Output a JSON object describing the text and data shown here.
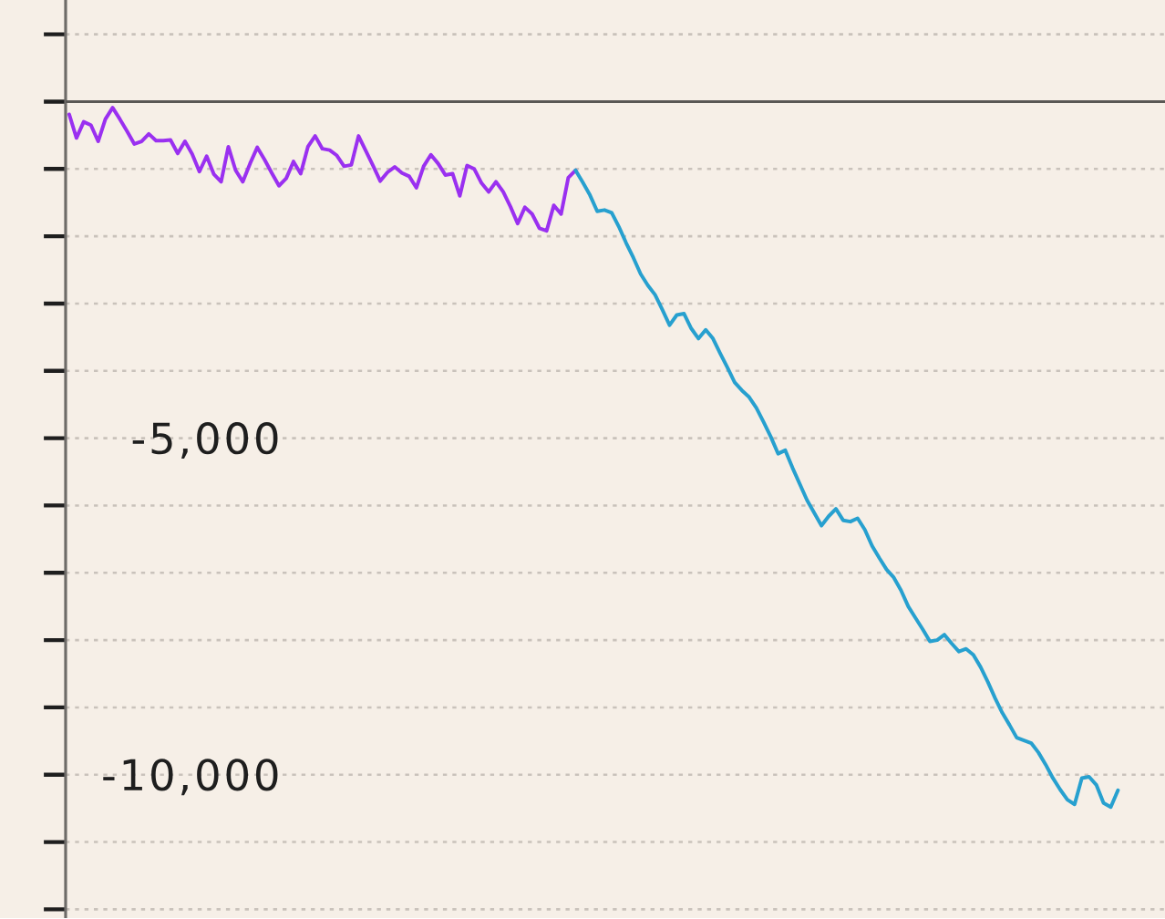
{
  "chart_data": {
    "type": "line",
    "categories": [
      null,
      null,
      null,
      null,
      null,
      null,
      null,
      null,
      null,
      null,
      null,
      null,
      null,
      null,
      null,
      null,
      null,
      null,
      null,
      null,
      null,
      null,
      null,
      null,
      null,
      null,
      null,
      null,
      null,
      null,
      null,
      null,
      null,
      null,
      null,
      null,
      null,
      null,
      null,
      null,
      null,
      null,
      null,
      null,
      null,
      null,
      null,
      null,
      null,
      null,
      null,
      null,
      null,
      null,
      null,
      null,
      null,
      null,
      null,
      null,
      null,
      null,
      null,
      null,
      null,
      null,
      null,
      null,
      null,
      null,
      null,
      null,
      null,
      null,
      null,
      null,
      null,
      null,
      null,
      null,
      null,
      null,
      null,
      null,
      null,
      null,
      null,
      null,
      null,
      null,
      null,
      null,
      null,
      null,
      null,
      null,
      null,
      null,
      null,
      null,
      null,
      null,
      null,
      null,
      null,
      null,
      null,
      null,
      null,
      null,
      null,
      null,
      null,
      null,
      null,
      null,
      null,
      null,
      null,
      null,
      null,
      null,
      null,
      null,
      null,
      null,
      null,
      null,
      null,
      null,
      null,
      null,
      null,
      null,
      null,
      null,
      null,
      null,
      null,
      null,
      null,
      null,
      null,
      null,
      null,
      null,
      null,
      null,
      null,
      null,
      null,
      null
    ],
    "series": [
      {
        "color": "#9a30f0",
        "values": [
          -190,
          -540,
          -300,
          -350,
          -590,
          -260,
          -90,
          -260,
          -440,
          -630,
          -590,
          -480,
          -580,
          -580,
          -570,
          -770,
          -590,
          -780,
          -1040,
          -810,
          -1080,
          -1190,
          -670,
          -1020,
          -1190,
          -920,
          -680,
          -860,
          -1060,
          -1250,
          -1140,
          -890,
          -1070,
          -670,
          -510,
          -700,
          -720,
          -800,
          -960,
          -940,
          -510,
          -730,
          -950,
          -1180,
          -1050,
          -970,
          -1060,
          -1110,
          -1280,
          -960,
          -790,
          -920,
          -1090,
          -1070,
          -1400,
          -950,
          -1000,
          -1210,
          -1340,
          -1190,
          -1340,
          -1560,
          -1810,
          -1570,
          -1670,
          -1880,
          -1920,
          -1540,
          -1670,
          -1130,
          -1020,
          null,
          null,
          null,
          null,
          null,
          null,
          null,
          null,
          null,
          null,
          null,
          null,
          null,
          null,
          null,
          null,
          null,
          null,
          null,
          null,
          null,
          null,
          null,
          null,
          null,
          null,
          null,
          null,
          null,
          null,
          null,
          null,
          null,
          null,
          null,
          null,
          null,
          null,
          null,
          null,
          null,
          null,
          null,
          null,
          null,
          null,
          null,
          null,
          null,
          null,
          null,
          null,
          null,
          null,
          null,
          null,
          null,
          null,
          null,
          null,
          null,
          null,
          null,
          null,
          null,
          null,
          null,
          null,
          null,
          null,
          null,
          null,
          null,
          null,
          null,
          null,
          null,
          null,
          null,
          null,
          null
        ]
      },
      {
        "color": "#27a0cf",
        "values": [
          null,
          null,
          null,
          null,
          null,
          null,
          null,
          null,
          null,
          null,
          null,
          null,
          null,
          null,
          null,
          null,
          null,
          null,
          null,
          null,
          null,
          null,
          null,
          null,
          null,
          null,
          null,
          null,
          null,
          null,
          null,
          null,
          null,
          null,
          null,
          null,
          null,
          null,
          null,
          null,
          null,
          null,
          null,
          null,
          null,
          null,
          null,
          null,
          null,
          null,
          null,
          null,
          null,
          null,
          null,
          null,
          null,
          null,
          null,
          null,
          null,
          null,
          null,
          null,
          null,
          null,
          null,
          null,
          null,
          null,
          -1020,
          -1200,
          -1390,
          -1630,
          -1610,
          -1650,
          -1860,
          -2100,
          -2320,
          -2560,
          -2730,
          -2870,
          -3090,
          -3320,
          -3170,
          -3150,
          -3370,
          -3520,
          -3390,
          -3520,
          -3740,
          -3950,
          -4170,
          -4290,
          -4390,
          -4550,
          -4760,
          -4980,
          -5230,
          -5180,
          -5440,
          -5680,
          -5920,
          -6110,
          -6300,
          -6160,
          -6050,
          -6220,
          -6240,
          -6190,
          -6360,
          -6600,
          -6780,
          -6950,
          -7070,
          -7260,
          -7500,
          -7670,
          -7840,
          -8020,
          -8000,
          -7920,
          -8050,
          -8170,
          -8130,
          -8220,
          -8400,
          -8620,
          -8860,
          -9080,
          -9260,
          -9450,
          -9490,
          -9530,
          -9670,
          -9850,
          -10050,
          -10220,
          -10370,
          -10440,
          -10050,
          -10030,
          -10150,
          -10420,
          -10480,
          -10230,
          null,
          null,
          null,
          null,
          null,
          null
        ]
      }
    ],
    "ylim": [
      -12130,
      1510
    ],
    "yticks": [
      {
        "value": -12000,
        "label": null
      },
      {
        "value": -11000,
        "label": null
      },
      {
        "value": -10000,
        "label": "-10,000"
      },
      {
        "value": -9000,
        "label": null
      },
      {
        "value": -8000,
        "label": null
      },
      {
        "value": -7000,
        "label": null
      },
      {
        "value": -6000,
        "label": null
      },
      {
        "value": -5000,
        "label": "-5,000"
      },
      {
        "value": -4000,
        "label": null
      },
      {
        "value": -3000,
        "label": null
      },
      {
        "value": -2000,
        "label": null
      },
      {
        "value": -1000,
        "label": null
      },
      {
        "value": 0,
        "label": null
      },
      {
        "value": 1000,
        "label": null
      }
    ],
    "grid": "y",
    "tick_labels": "y",
    "ref_lines": [
      {
        "axis": "y",
        "value": 0,
        "color": "#5a5855"
      }
    ]
  }
}
